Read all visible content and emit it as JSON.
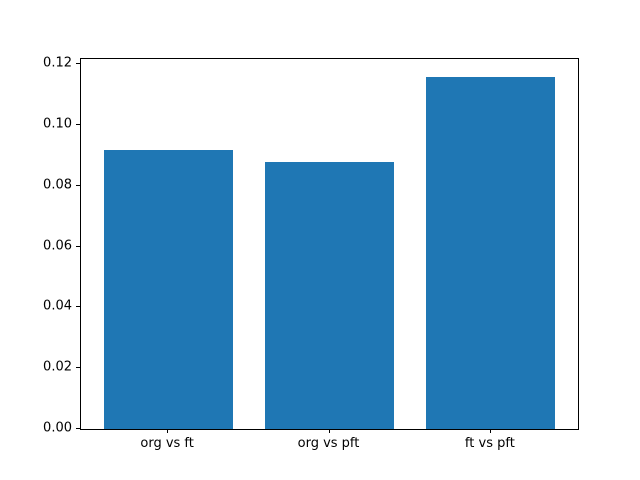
{
  "chart_data": {
    "type": "bar",
    "categories": [
      "org vs ft",
      "org vs pft",
      "ft vs pft"
    ],
    "values": [
      0.092,
      0.088,
      0.116
    ],
    "title": "",
    "xlabel": "",
    "ylabel": "",
    "ylim": [
      0,
      0.1218
    ],
    "xlim": [
      -0.54,
      2.54
    ],
    "bar_width_units": 0.8,
    "yticks": {
      "values": [
        0.0,
        0.02,
        0.04,
        0.06,
        0.08,
        0.1,
        0.12
      ],
      "labels": [
        "0.00",
        "0.02",
        "0.04",
        "0.06",
        "0.08",
        "0.10",
        "0.12"
      ]
    },
    "bar_color": "#1f77b4",
    "spine_color": "#000000",
    "background": "#ffffff",
    "grid": false,
    "legend": null
  }
}
